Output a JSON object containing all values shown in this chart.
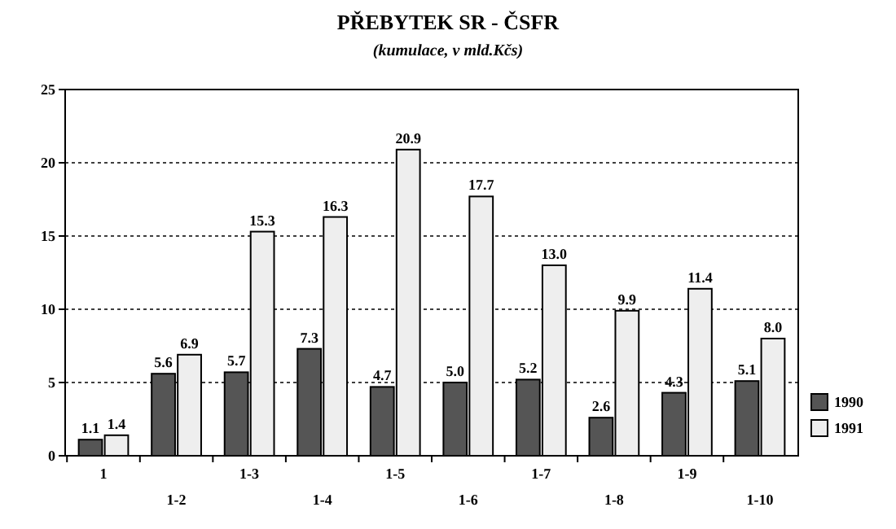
{
  "chart_data": {
    "type": "bar",
    "title": "PŘEBYTEK SR - ČSFR",
    "subtitle": "(kumulace, v mld.Kčs)",
    "categories": [
      "1",
      "1-2",
      "1-3",
      "1-4",
      "1-5",
      "1-6",
      "1-7",
      "1-8",
      "1-9",
      "1-10"
    ],
    "series": [
      {
        "name": "1990",
        "color": "#555555",
        "values": [
          1.1,
          5.6,
          5.7,
          7.3,
          4.7,
          5.0,
          5.2,
          2.6,
          4.3,
          5.1
        ],
        "value_labels": [
          "1.1",
          "5.6",
          "5.7",
          "7.3",
          "4.7",
          "5.0",
          "5.2",
          "2.6",
          "4.3",
          "5.1"
        ]
      },
      {
        "name": "1991",
        "color": "#eeeeee",
        "values": [
          1.4,
          6.9,
          15.3,
          16.3,
          20.9,
          17.7,
          13.0,
          9.9,
          11.4,
          8.0
        ],
        "value_labels": [
          "1.4",
          "6.9",
          "15.3",
          "16.3",
          "20.9",
          "17.7",
          "13.0",
          "9.9",
          "11.4",
          "8.0"
        ]
      }
    ],
    "ylim": [
      0,
      25
    ],
    "yticks": [
      0,
      5,
      10,
      15,
      20,
      25
    ],
    "grid": "y",
    "legend": "right"
  }
}
